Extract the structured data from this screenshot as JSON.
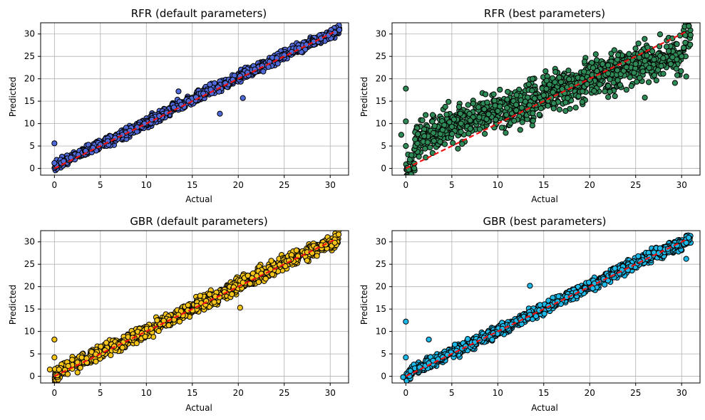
{
  "figure": {
    "background": "#ffffff"
  },
  "styles": {
    "point_edge": "#000000",
    "reference_line": "#ee1111",
    "grid": "#b0b0b0"
  },
  "chart_data": [
    {
      "type": "scatter",
      "title": "RFR (default parameters)",
      "xlabel": "Actual",
      "ylabel": "Predicted",
      "xlim": [
        -1.5,
        32
      ],
      "ylim": [
        -1.5,
        32.5
      ],
      "xticks": [
        0,
        5,
        10,
        15,
        20,
        25,
        30
      ],
      "yticks": [
        0,
        5,
        10,
        15,
        20,
        25,
        30
      ],
      "grid": true,
      "color": "#4f6ad8",
      "reference_line": {
        "from": [
          0,
          0
        ],
        "to": [
          30.5,
          30.5
        ],
        "style": "dashed"
      },
      "spread": 0.7,
      "bias": 0.0,
      "outliers": [
        [
          0,
          5.6
        ],
        [
          0,
          1.2
        ],
        [
          20.5,
          15.7
        ],
        [
          13.5,
          17.2
        ],
        [
          18,
          12.2
        ]
      ],
      "points": [
        [
          0.2,
          0.8
        ],
        [
          1.0,
          1.6
        ],
        [
          1.8,
          2.4
        ],
        [
          2.6,
          3.0
        ],
        [
          3.4,
          3.9
        ],
        [
          4.2,
          4.6
        ],
        [
          5.0,
          5.3
        ],
        [
          5.8,
          6.1
        ],
        [
          6.6,
          6.8
        ],
        [
          7.4,
          7.5
        ],
        [
          8.2,
          8.4
        ],
        [
          9.0,
          9.2
        ],
        [
          9.8,
          10.0
        ],
        [
          10.6,
          10.9
        ],
        [
          11.4,
          11.7
        ],
        [
          12.2,
          12.4
        ],
        [
          13.0,
          13.6
        ],
        [
          13.8,
          14.2
        ],
        [
          14.6,
          15.0
        ],
        [
          15.4,
          15.9
        ],
        [
          16.2,
          16.7
        ],
        [
          17.0,
          17.6
        ],
        [
          17.8,
          18.1
        ],
        [
          18.6,
          19.0
        ],
        [
          19.4,
          19.8
        ],
        [
          20.2,
          20.6
        ],
        [
          21.0,
          21.4
        ],
        [
          21.8,
          22.1
        ],
        [
          22.6,
          22.9
        ],
        [
          23.4,
          23.8
        ],
        [
          24.2,
          24.6
        ],
        [
          25.0,
          25.3
        ],
        [
          25.8,
          26.0
        ],
        [
          26.6,
          26.8
        ],
        [
          27.4,
          27.6
        ],
        [
          28.2,
          28.3
        ],
        [
          29.0,
          29.0
        ],
        [
          29.8,
          29.7
        ],
        [
          30.5,
          30.3
        ]
      ]
    },
    {
      "type": "scatter",
      "title": "RFR (best parameters)",
      "xlabel": "Actual",
      "ylabel": "Predicted",
      "xlim": [
        -1.5,
        32
      ],
      "ylim": [
        -1.5,
        32.5
      ],
      "xticks": [
        0,
        5,
        10,
        15,
        20,
        25,
        30
      ],
      "yticks": [
        0,
        5,
        10,
        15,
        20,
        25,
        30
      ],
      "grid": true,
      "color": "#2e8b57",
      "reference_line": {
        "from": [
          0,
          0
        ],
        "to": [
          30.5,
          30.5
        ],
        "style": "dashed"
      },
      "spread": 2.6,
      "bias": 2.5,
      "outliers": [
        [
          0,
          17.8
        ],
        [
          0,
          10.5
        ],
        [
          0,
          5.0
        ],
        [
          -0.5,
          7.5
        ],
        [
          26,
          15.8
        ],
        [
          30.5,
          20.5
        ]
      ],
      "points": [
        [
          1,
          6.5
        ],
        [
          2,
          7.2
        ],
        [
          3,
          7.9
        ],
        [
          4,
          8.6
        ],
        [
          5,
          9.3
        ],
        [
          6,
          10.0
        ],
        [
          7,
          10.7
        ],
        [
          8,
          11.4
        ],
        [
          9,
          12.1
        ],
        [
          10,
          12.8
        ],
        [
          11,
          13.5
        ],
        [
          12,
          14.2
        ],
        [
          13,
          14.9
        ],
        [
          14,
          15.6
        ],
        [
          15,
          16.3
        ],
        [
          16,
          17.0
        ],
        [
          17,
          17.7
        ],
        [
          18,
          18.4
        ],
        [
          19,
          19.1
        ],
        [
          20,
          19.8
        ],
        [
          21,
          20.5
        ],
        [
          22,
          21.2
        ],
        [
          23,
          21.9
        ],
        [
          24,
          22.6
        ],
        [
          25,
          23.3
        ],
        [
          26,
          24.0
        ],
        [
          27,
          24.3
        ],
        [
          28,
          24.6
        ],
        [
          29,
          24.8
        ],
        [
          30,
          25.0
        ]
      ]
    },
    {
      "type": "scatter",
      "title": "GBR (default parameters)",
      "xlabel": "Actual",
      "ylabel": "Predicted",
      "xlim": [
        -1.5,
        32
      ],
      "ylim": [
        -1.5,
        32.5
      ],
      "xticks": [
        0,
        5,
        10,
        15,
        20,
        25,
        30
      ],
      "yticks": [
        0,
        5,
        10,
        15,
        20,
        25,
        30
      ],
      "grid": true,
      "color": "#f7c518",
      "reference_line": {
        "from": [
          0,
          0
        ],
        "to": [
          30.5,
          30.5
        ],
        "style": "dashed"
      },
      "spread": 1.0,
      "bias": 0.2,
      "outliers": [
        [
          0,
          8.2
        ],
        [
          0,
          4.2
        ],
        [
          -0.5,
          1.5
        ],
        [
          20.2,
          15.3
        ]
      ],
      "points": [
        [
          0.5,
          1.5
        ],
        [
          1.5,
          2.3
        ],
        [
          2.5,
          3.1
        ],
        [
          3.5,
          4.0
        ],
        [
          4.5,
          4.9
        ],
        [
          5.5,
          5.8
        ],
        [
          6.5,
          6.7
        ],
        [
          7.5,
          7.6
        ],
        [
          8.5,
          8.6
        ],
        [
          9.5,
          9.6
        ],
        [
          10.5,
          10.6
        ],
        [
          11.5,
          11.6
        ],
        [
          12.5,
          12.6
        ],
        [
          13.5,
          13.7
        ],
        [
          14.5,
          14.7
        ],
        [
          15.5,
          15.7
        ],
        [
          16.5,
          16.8
        ],
        [
          17.5,
          17.8
        ],
        [
          18.5,
          18.8
        ],
        [
          19.5,
          19.9
        ],
        [
          20.5,
          20.9
        ],
        [
          21.5,
          21.9
        ],
        [
          22.5,
          22.9
        ],
        [
          23.5,
          23.9
        ],
        [
          24.5,
          24.9
        ],
        [
          25.5,
          25.8
        ],
        [
          26.5,
          26.8
        ],
        [
          27.5,
          27.7
        ],
        [
          28.5,
          28.6
        ],
        [
          29.5,
          29.4
        ],
        [
          30.5,
          29.8
        ]
      ]
    },
    {
      "type": "scatter",
      "title": "GBR (best parameters)",
      "xlabel": "Actual",
      "ylabel": "Predicted",
      "xlim": [
        -1.5,
        32
      ],
      "ylim": [
        -1.5,
        32.5
      ],
      "xticks": [
        0,
        5,
        10,
        15,
        20,
        25,
        30
      ],
      "yticks": [
        0,
        5,
        10,
        15,
        20,
        25,
        30
      ],
      "grid": true,
      "color": "#1cb8e8",
      "reference_line": {
        "from": [
          0,
          0
        ],
        "to": [
          30.5,
          30.5
        ],
        "style": "dashed"
      },
      "spread": 0.8,
      "bias": 0.1,
      "outliers": [
        [
          0,
          12.2
        ],
        [
          0,
          4.2
        ],
        [
          -0.3,
          -0.2
        ],
        [
          2.5,
          8.2
        ],
        [
          13.5,
          20.2
        ],
        [
          30.5,
          26.2
        ]
      ],
      "points": [
        [
          0.5,
          1.2
        ],
        [
          1.5,
          2.0
        ],
        [
          2.5,
          2.9
        ],
        [
          3.5,
          3.8
        ],
        [
          4.5,
          4.8
        ],
        [
          5.5,
          5.7
        ],
        [
          6.5,
          6.7
        ],
        [
          7.5,
          7.6
        ],
        [
          8.5,
          8.6
        ],
        [
          9.5,
          9.6
        ],
        [
          10.5,
          10.6
        ],
        [
          11.5,
          11.6
        ],
        [
          12.5,
          12.6
        ],
        [
          13.5,
          13.7
        ],
        [
          14.5,
          14.7
        ],
        [
          15.5,
          15.7
        ],
        [
          16.5,
          16.7
        ],
        [
          17.5,
          17.7
        ],
        [
          18.5,
          18.7
        ],
        [
          19.5,
          19.7
        ],
        [
          20.5,
          20.7
        ],
        [
          21.5,
          21.7
        ],
        [
          22.5,
          22.7
        ],
        [
          23.5,
          23.7
        ],
        [
          24.5,
          24.6
        ],
        [
          25.5,
          25.6
        ],
        [
          26.5,
          26.6
        ],
        [
          27.5,
          27.5
        ],
        [
          28.5,
          28.4
        ],
        [
          29.5,
          29.2
        ],
        [
          30.5,
          29.8
        ]
      ]
    }
  ]
}
